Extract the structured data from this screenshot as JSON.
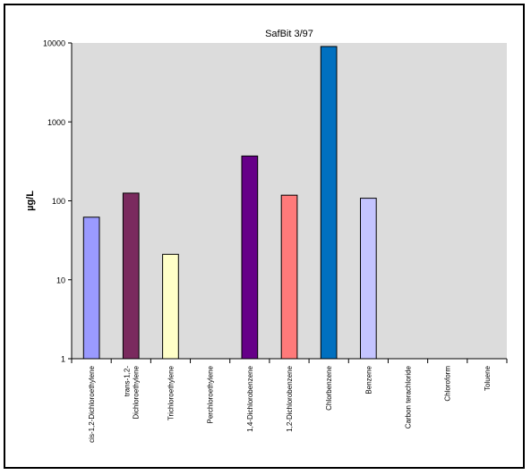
{
  "chart_data": {
    "type": "bar",
    "title": "SafBit 3/97",
    "xlabel": "",
    "ylabel": "µg/L",
    "yscale": "log",
    "ylim": [
      1,
      10000
    ],
    "yticks": [
      1,
      10,
      100,
      1000,
      10000
    ],
    "ytick_labels": [
      "1",
      "10",
      "100",
      "1000",
      "10000"
    ],
    "grid": false,
    "legend": "none",
    "plot_background": "#dcdcdc",
    "categories": [
      "cis-1,2-Dichloroethylene",
      "trans-1,2-Dichloroethylene",
      "Trichloroethylene",
      "Perchloroethylene",
      "1,4-Dichlorobenzene",
      "1,2-Dichlorobenzene",
      "Chlorbenzene",
      "Benzene",
      "Carbon terachloride",
      "Chloroform",
      "Toluene"
    ],
    "category_label_lines": [
      [
        "cis-1,2-Dichloroethylene"
      ],
      [
        "trans-1,2-",
        "Dichloroethylene"
      ],
      [
        "Trichloroethylene"
      ],
      [
        "Perchloroethylene"
      ],
      [
        "1,4-Dichlorobenzene"
      ],
      [
        "1,2-Dichlorobenzene"
      ],
      [
        "Chlorbenzene"
      ],
      [
        "Benzene"
      ],
      [
        "Carbon terachloride"
      ],
      [
        "Chloroform"
      ],
      [
        "Toluene"
      ]
    ],
    "values": [
      62,
      125,
      21,
      null,
      370,
      118,
      9000,
      108,
      null,
      null,
      null
    ],
    "bar_colors": [
      "#9a9aff",
      "#7a2a5e",
      "#ffffc8",
      null,
      "#660088",
      "#ff7a7a",
      "#0070c0",
      "#c4c4ff",
      null,
      null,
      null
    ]
  }
}
